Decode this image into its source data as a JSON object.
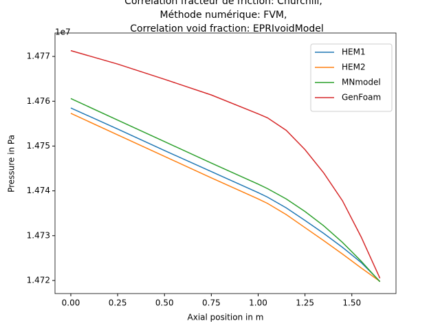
{
  "chart_data": {
    "type": "line",
    "title_lines": [
      "Correlation fracteur de friction: Churchill,",
      "Méthode numérique: FVM,",
      "Correlation void fraction: EPRIvoidModel"
    ],
    "xlabel": "Axial position in m",
    "ylabel": "Pressure in Pa",
    "y_offset_label": "1e7",
    "x": [
      0,
      0.25,
      0.5,
      0.75,
      1.0,
      1.05,
      1.15,
      1.25,
      1.35,
      1.45,
      1.55,
      1.65
    ],
    "series": [
      {
        "name": "HEM1",
        "color": "#1f77b4",
        "values": [
          1.47585,
          1.47538,
          1.4749,
          1.47443,
          1.47396,
          1.47386,
          1.47362,
          1.47334,
          1.47305,
          1.47274,
          1.4724,
          1.47198
        ]
      },
      {
        "name": "HEM2",
        "color": "#ff7f0e",
        "values": [
          1.47573,
          1.47525,
          1.47477,
          1.47429,
          1.47382,
          1.47372,
          1.47347,
          1.47318,
          1.47289,
          1.47259,
          1.47228,
          1.47198
        ]
      },
      {
        "name": "MNmodel",
        "color": "#2ca02c",
        "values": [
          1.47606,
          1.47558,
          1.4751,
          1.47462,
          1.47415,
          1.47405,
          1.47382,
          1.47354,
          1.47322,
          1.47285,
          1.47243,
          1.47197
        ]
      },
      {
        "name": "GenFoam",
        "color": "#d62728",
        "values": [
          1.47713,
          1.47683,
          1.47649,
          1.47614,
          1.47572,
          1.47563,
          1.47535,
          1.47492,
          1.4744,
          1.47378,
          1.47297,
          1.47205
        ]
      }
    ],
    "xlim": [
      -0.0844,
      1.7358
    ],
    "ylim": [
      1.471708,
      1.477523
    ],
    "xticks": [
      {
        "value": 0,
        "label": "0.00"
      },
      0.25,
      {
        "value": 0.5,
        "label": "0.50"
      },
      0.75,
      {
        "value": 1,
        "label": "1.00"
      },
      1.25,
      {
        "value": 1.5,
        "label": "1.50"
      }
    ],
    "yticks": [
      1.472,
      1.473,
      1.474,
      1.475,
      1.476,
      1.477
    ],
    "legend": "upper right"
  }
}
